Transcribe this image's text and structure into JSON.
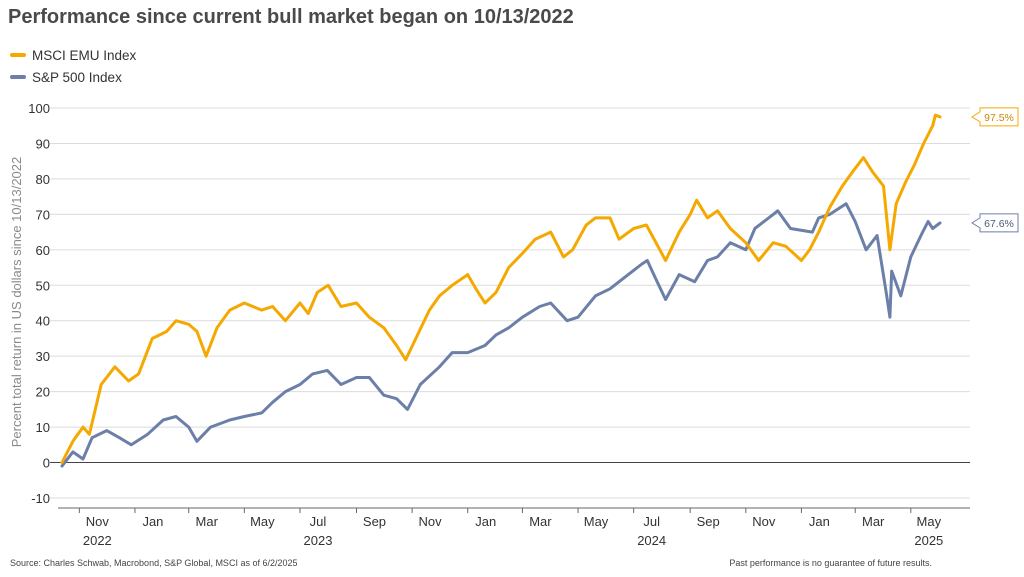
{
  "header": {
    "title": "Performance since current bull market began on 10/13/2022"
  },
  "chart_data": {
    "type": "line",
    "title": "Performance since current bull market began on 10/13/2022",
    "ylabel": "Percent total return in US dollars since 10/13/2022",
    "xlabel": "",
    "ylim": [
      -10,
      100
    ],
    "yticks": [
      -10,
      0,
      10,
      20,
      30,
      40,
      50,
      60,
      70,
      80,
      90,
      100
    ],
    "xlim": [
      "2022-10-13",
      "2025-06-02"
    ],
    "xticks": [
      {
        "date": "2022-11-01",
        "label": "Nov",
        "year": "2022"
      },
      {
        "date": "2023-01-01",
        "label": "Jan",
        "year": ""
      },
      {
        "date": "2023-03-01",
        "label": "Mar",
        "year": ""
      },
      {
        "date": "2023-05-01",
        "label": "May",
        "year": ""
      },
      {
        "date": "2023-07-01",
        "label": "Jul",
        "year": "2023"
      },
      {
        "date": "2023-09-01",
        "label": "Sep",
        "year": ""
      },
      {
        "date": "2023-11-01",
        "label": "Nov",
        "year": ""
      },
      {
        "date": "2024-01-01",
        "label": "Jan",
        "year": ""
      },
      {
        "date": "2024-03-01",
        "label": "Mar",
        "year": ""
      },
      {
        "date": "2024-05-01",
        "label": "May",
        "year": ""
      },
      {
        "date": "2024-07-01",
        "label": "Jul",
        "year": "2024"
      },
      {
        "date": "2024-09-01",
        "label": "Sep",
        "year": ""
      },
      {
        "date": "2024-11-01",
        "label": "Nov",
        "year": ""
      },
      {
        "date": "2025-01-01",
        "label": "Jan",
        "year": ""
      },
      {
        "date": "2025-03-01",
        "label": "Mar",
        "year": ""
      },
      {
        "date": "2025-05-01",
        "label": "May",
        "year": "2025"
      }
    ],
    "grid": true,
    "legend_position": "top-left",
    "series": [
      {
        "name": "MSCI EMU Index",
        "color": "#f5a800",
        "end_label": "97.5%",
        "points": [
          [
            "2022-10-13",
            0
          ],
          [
            "2022-10-25",
            6
          ],
          [
            "2022-11-05",
            10
          ],
          [
            "2022-11-12",
            8
          ],
          [
            "2022-11-25",
            22
          ],
          [
            "2022-12-10",
            27
          ],
          [
            "2022-12-25",
            23
          ],
          [
            "2023-01-05",
            25
          ],
          [
            "2023-01-20",
            35
          ],
          [
            "2023-02-05",
            37
          ],
          [
            "2023-02-15",
            40
          ],
          [
            "2023-03-01",
            39
          ],
          [
            "2023-03-10",
            37
          ],
          [
            "2023-03-20",
            30
          ],
          [
            "2023-04-01",
            38
          ],
          [
            "2023-04-15",
            43
          ],
          [
            "2023-05-01",
            45
          ],
          [
            "2023-05-20",
            43
          ],
          [
            "2023-06-01",
            44
          ],
          [
            "2023-06-15",
            40
          ],
          [
            "2023-07-01",
            45
          ],
          [
            "2023-07-10",
            42
          ],
          [
            "2023-07-20",
            48
          ],
          [
            "2023-08-01",
            50
          ],
          [
            "2023-08-15",
            44
          ],
          [
            "2023-09-01",
            45
          ],
          [
            "2023-09-15",
            41
          ],
          [
            "2023-10-01",
            38
          ],
          [
            "2023-10-15",
            33
          ],
          [
            "2023-10-25",
            29
          ],
          [
            "2023-11-05",
            35
          ],
          [
            "2023-11-20",
            43
          ],
          [
            "2023-12-01",
            47
          ],
          [
            "2023-12-15",
            50
          ],
          [
            "2024-01-01",
            53
          ],
          [
            "2024-01-10",
            49
          ],
          [
            "2024-01-20",
            45
          ],
          [
            "2024-02-01",
            48
          ],
          [
            "2024-02-15",
            55
          ],
          [
            "2024-03-01",
            59
          ],
          [
            "2024-03-15",
            63
          ],
          [
            "2024-04-01",
            65
          ],
          [
            "2024-04-15",
            58
          ],
          [
            "2024-04-25",
            60
          ],
          [
            "2024-05-10",
            67
          ],
          [
            "2024-05-20",
            69
          ],
          [
            "2024-06-05",
            69
          ],
          [
            "2024-06-15",
            63
          ],
          [
            "2024-07-01",
            66
          ],
          [
            "2024-07-15",
            67
          ],
          [
            "2024-08-05",
            57
          ],
          [
            "2024-08-20",
            65
          ],
          [
            "2024-09-01",
            70
          ],
          [
            "2024-09-08",
            74
          ],
          [
            "2024-09-20",
            69
          ],
          [
            "2024-10-01",
            71
          ],
          [
            "2024-10-15",
            66
          ],
          [
            "2024-11-01",
            62
          ],
          [
            "2024-11-15",
            57
          ],
          [
            "2024-12-01",
            62
          ],
          [
            "2024-12-15",
            61
          ],
          [
            "2025-01-01",
            57
          ],
          [
            "2025-01-10",
            60
          ],
          [
            "2025-01-20",
            65
          ],
          [
            "2025-02-01",
            72
          ],
          [
            "2025-02-15",
            78
          ],
          [
            "2025-03-01",
            83
          ],
          [
            "2025-03-10",
            86
          ],
          [
            "2025-03-20",
            82
          ],
          [
            "2025-04-01",
            78
          ],
          [
            "2025-04-08",
            60
          ],
          [
            "2025-04-15",
            73
          ],
          [
            "2025-04-25",
            79
          ],
          [
            "2025-05-05",
            84
          ],
          [
            "2025-05-15",
            90
          ],
          [
            "2025-05-25",
            95
          ],
          [
            "2025-05-28",
            98
          ],
          [
            "2025-06-02",
            97.5
          ]
        ]
      },
      {
        "name": "S&P 500 Index",
        "color": "#6b7fa8",
        "end_label": "67.6%",
        "points": [
          [
            "2022-10-13",
            -1
          ],
          [
            "2022-10-25",
            3
          ],
          [
            "2022-11-05",
            1
          ],
          [
            "2022-11-15",
            7
          ],
          [
            "2022-12-01",
            9
          ],
          [
            "2022-12-15",
            7
          ],
          [
            "2022-12-28",
            5
          ],
          [
            "2023-01-15",
            8
          ],
          [
            "2023-02-01",
            12
          ],
          [
            "2023-02-15",
            13
          ],
          [
            "2023-03-01",
            10
          ],
          [
            "2023-03-10",
            6
          ],
          [
            "2023-03-25",
            10
          ],
          [
            "2023-04-15",
            12
          ],
          [
            "2023-05-01",
            13
          ],
          [
            "2023-05-20",
            14
          ],
          [
            "2023-06-01",
            17
          ],
          [
            "2023-06-15",
            20
          ],
          [
            "2023-07-01",
            22
          ],
          [
            "2023-07-15",
            25
          ],
          [
            "2023-07-31",
            26
          ],
          [
            "2023-08-15",
            22
          ],
          [
            "2023-09-01",
            24
          ],
          [
            "2023-09-15",
            24
          ],
          [
            "2023-10-01",
            19
          ],
          [
            "2023-10-15",
            18
          ],
          [
            "2023-10-27",
            15
          ],
          [
            "2023-11-10",
            22
          ],
          [
            "2023-12-01",
            27
          ],
          [
            "2023-12-15",
            31
          ],
          [
            "2024-01-01",
            31
          ],
          [
            "2024-01-20",
            33
          ],
          [
            "2024-02-01",
            36
          ],
          [
            "2024-02-15",
            38
          ],
          [
            "2024-03-01",
            41
          ],
          [
            "2024-03-20",
            44
          ],
          [
            "2024-04-01",
            45
          ],
          [
            "2024-04-19",
            40
          ],
          [
            "2024-05-01",
            41
          ],
          [
            "2024-05-20",
            47
          ],
          [
            "2024-06-05",
            49
          ],
          [
            "2024-06-20",
            52
          ],
          [
            "2024-07-10",
            56
          ],
          [
            "2024-07-16",
            57
          ],
          [
            "2024-07-25",
            52
          ],
          [
            "2024-08-05",
            46
          ],
          [
            "2024-08-20",
            53
          ],
          [
            "2024-09-06",
            51
          ],
          [
            "2024-09-20",
            57
          ],
          [
            "2024-10-01",
            58
          ],
          [
            "2024-10-15",
            62
          ],
          [
            "2024-11-01",
            60
          ],
          [
            "2024-11-11",
            66
          ],
          [
            "2024-12-01",
            70
          ],
          [
            "2024-12-06",
            71
          ],
          [
            "2024-12-20",
            66
          ],
          [
            "2025-01-13",
            65
          ],
          [
            "2025-01-20",
            69
          ],
          [
            "2025-02-01",
            70
          ],
          [
            "2025-02-19",
            73
          ],
          [
            "2025-03-01",
            68
          ],
          [
            "2025-03-13",
            60
          ],
          [
            "2025-03-25",
            64
          ],
          [
            "2025-04-04",
            48
          ],
          [
            "2025-04-08",
            41
          ],
          [
            "2025-04-10",
            54
          ],
          [
            "2025-04-20",
            47
          ],
          [
            "2025-05-01",
            58
          ],
          [
            "2025-05-12",
            64
          ],
          [
            "2025-05-20",
            68
          ],
          [
            "2025-05-25",
            66
          ],
          [
            "2025-06-02",
            67.6
          ]
        ]
      }
    ]
  },
  "footer": {
    "source": "Source: Charles Schwab, Macrobond, S&P Global, MSCI as of 6/2/2025",
    "disclaimer": "Past performance is no guarantee of future results."
  }
}
